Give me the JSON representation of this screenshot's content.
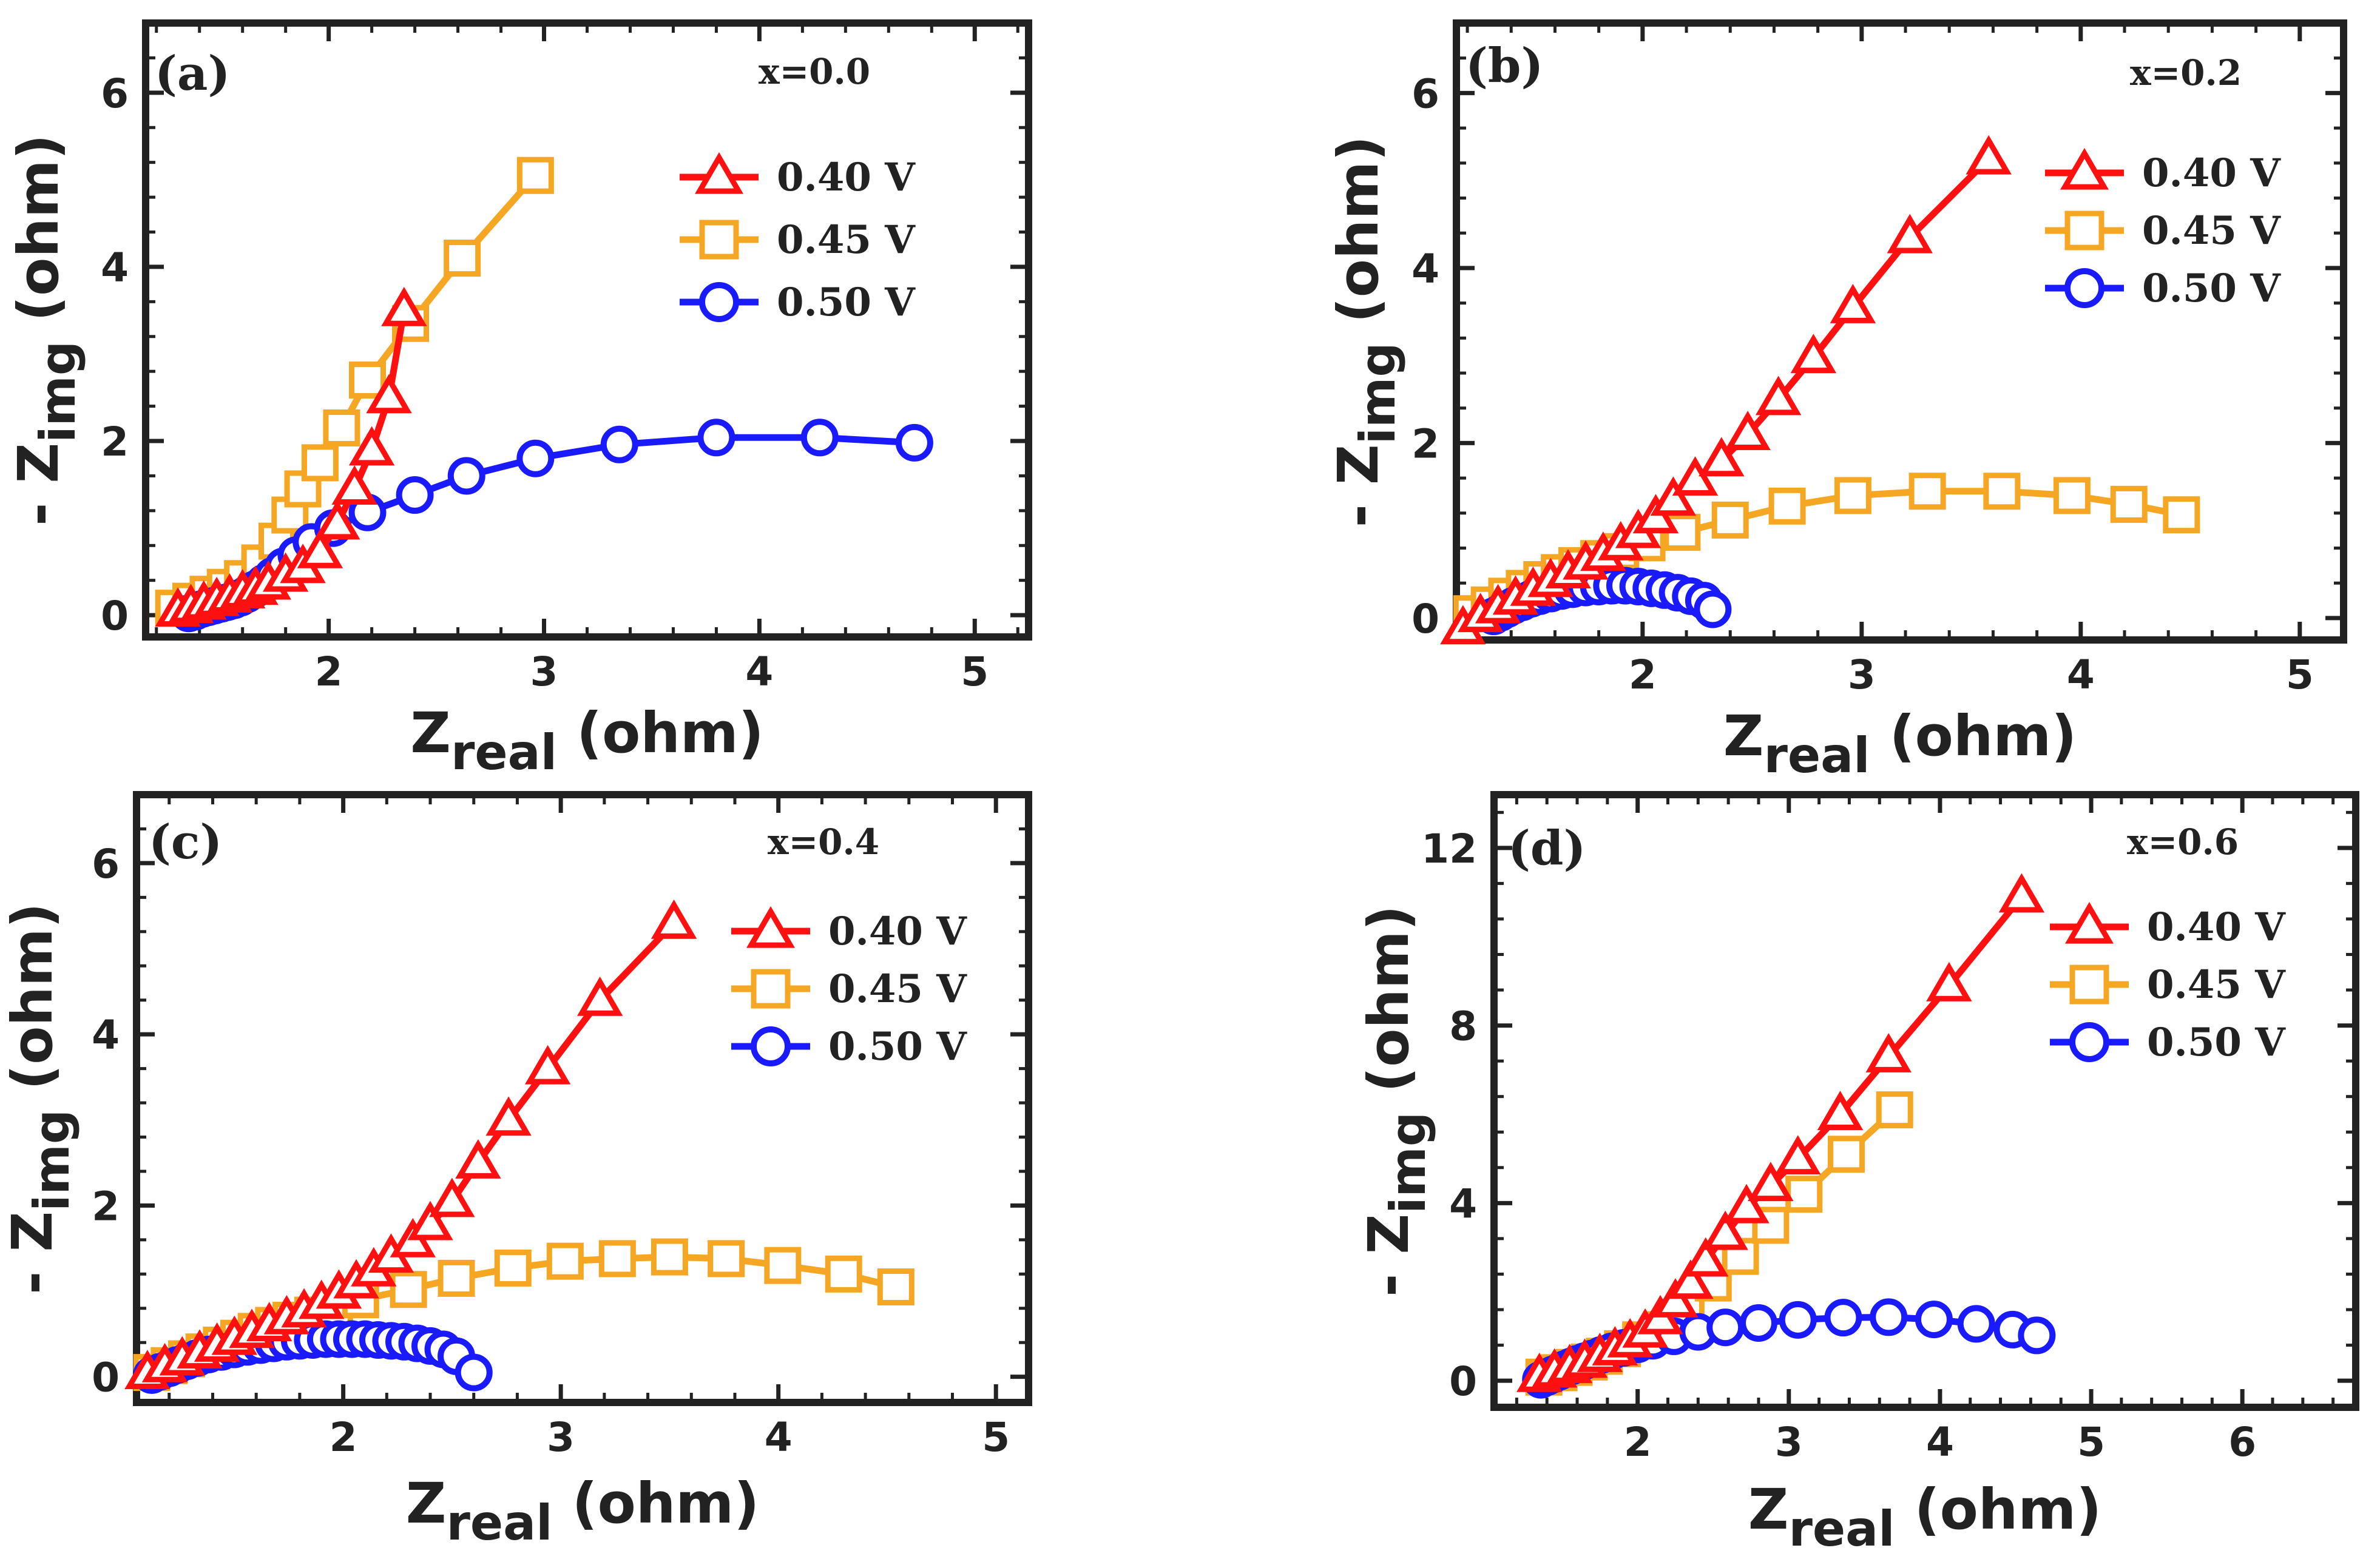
{
  "figure": {
    "axis_label_x_main": "Z",
    "axis_label_x_sub": "real",
    "axis_label_x_unit": "(ohm)",
    "axis_label_y_prefix": "- Z",
    "axis_label_y_sub": "img",
    "axis_label_y_unit": "(ohm)",
    "series_colors": {
      "0.40 V": "#ff1010",
      "0.45 V": "#f5a623",
      "0.50 V": "#1a1aff"
    },
    "series_markers": {
      "0.40 V": "triangle",
      "0.45 V": "square",
      "0.50 V": "circle"
    }
  },
  "chart_data": [
    {
      "type": "line",
      "panel": "(a)",
      "annotation": "x=0.0",
      "xlabel": "Zreal (ohm)",
      "ylabel": "- Zimg (ohm)",
      "xlim": [
        1.15,
        5.25
      ],
      "ylim": [
        -0.25,
        6.8
      ],
      "xticks": [
        2,
        3,
        4,
        5
      ],
      "yticks": [
        0,
        2,
        4,
        6
      ],
      "legend": "top-right",
      "series": [
        {
          "name": "0.40 V",
          "x": [
            1.3,
            1.36,
            1.42,
            1.48,
            1.54,
            1.6,
            1.66,
            1.72,
            1.8,
            1.88,
            1.96,
            2.04,
            2.12,
            2.2,
            2.28,
            2.35
          ],
          "y": [
            0.05,
            0.09,
            0.13,
            0.17,
            0.21,
            0.26,
            0.3,
            0.36,
            0.45,
            0.55,
            0.72,
            1.05,
            1.45,
            1.9,
            2.5,
            3.5
          ]
        },
        {
          "name": "0.45 V",
          "x": [
            1.28,
            1.36,
            1.44,
            1.52,
            1.6,
            1.68,
            1.76,
            1.82,
            1.88,
            1.96,
            2.06,
            2.18,
            2.38,
            2.62,
            2.96
          ],
          "y": [
            0.08,
            0.16,
            0.24,
            0.32,
            0.42,
            0.6,
            0.85,
            1.15,
            1.45,
            1.75,
            2.15,
            2.7,
            3.35,
            4.1,
            5.05
          ]
        },
        {
          "name": "0.50 V",
          "x": [
            1.35,
            1.38,
            1.41,
            1.44,
            1.47,
            1.5,
            1.53,
            1.56,
            1.59,
            1.62,
            1.66,
            1.7,
            1.74,
            1.79,
            1.85,
            1.92,
            2.02,
            2.18,
            2.4,
            2.64,
            2.96,
            3.35,
            3.8,
            4.28,
            4.72
          ],
          "y": [
            0.02,
            0.04,
            0.07,
            0.09,
            0.11,
            0.13,
            0.15,
            0.17,
            0.2,
            0.24,
            0.3,
            0.37,
            0.45,
            0.56,
            0.69,
            0.84,
            1.0,
            1.18,
            1.38,
            1.6,
            1.8,
            1.96,
            2.04,
            2.04,
            1.98
          ]
        }
      ]
    },
    {
      "type": "line",
      "panel": "(b)",
      "annotation": "x=0.2",
      "xlabel": "Zreal (ohm)",
      "ylabel": "- Zimg (ohm)",
      "xlim": [
        1.15,
        5.2
      ],
      "ylim": [
        -0.25,
        6.8
      ],
      "xticks": [
        2,
        3,
        4,
        5
      ],
      "yticks": [
        0,
        2,
        4,
        6
      ],
      "legend": "top-right",
      "series": [
        {
          "name": "0.40 V",
          "x": [
            1.18,
            1.26,
            1.34,
            1.42,
            1.5,
            1.58,
            1.66,
            1.74,
            1.82,
            1.9,
            1.98,
            2.06,
            2.14,
            2.24,
            2.36,
            2.48,
            2.62,
            2.78,
            2.96,
            3.22,
            3.58
          ],
          "y": [
            -0.12,
            0.02,
            0.12,
            0.22,
            0.32,
            0.42,
            0.52,
            0.62,
            0.72,
            0.84,
            0.98,
            1.15,
            1.35,
            1.58,
            1.8,
            2.1,
            2.5,
            2.98,
            3.55,
            4.35,
            5.25
          ]
        },
        {
          "name": "0.45 V",
          "x": [
            1.22,
            1.3,
            1.38,
            1.46,
            1.54,
            1.62,
            1.7,
            1.8,
            1.9,
            2.02,
            2.18,
            2.4,
            2.66,
            2.96,
            3.3,
            3.64,
            3.96,
            4.22,
            4.46
          ],
          "y": [
            0.05,
            0.15,
            0.25,
            0.34,
            0.44,
            0.52,
            0.6,
            0.68,
            0.76,
            0.86,
            0.98,
            1.12,
            1.28,
            1.4,
            1.45,
            1.45,
            1.4,
            1.3,
            1.18
          ]
        },
        {
          "name": "0.50 V",
          "x": [
            1.32,
            1.35,
            1.38,
            1.41,
            1.45,
            1.49,
            1.53,
            1.58,
            1.63,
            1.68,
            1.74,
            1.8,
            1.86,
            1.92,
            1.98,
            2.04,
            2.1,
            2.16,
            2.22,
            2.28,
            2.32
          ],
          "y": [
            0.02,
            0.06,
            0.1,
            0.14,
            0.18,
            0.22,
            0.25,
            0.28,
            0.31,
            0.33,
            0.35,
            0.36,
            0.37,
            0.37,
            0.36,
            0.34,
            0.32,
            0.29,
            0.25,
            0.2,
            0.1
          ]
        }
      ]
    },
    {
      "type": "line",
      "panel": "(c)",
      "annotation": "x=0.4",
      "xlabel": "Zreal (ohm)",
      "ylabel": "- Zimg (ohm)",
      "xlim": [
        1.05,
        5.15
      ],
      "ylim": [
        -0.3,
        6.8
      ],
      "xticks": [
        2,
        3,
        4,
        5
      ],
      "yticks": [
        0,
        2,
        4,
        6
      ],
      "legend": "top-right",
      "series": [
        {
          "name": "0.40 V",
          "x": [
            1.1,
            1.18,
            1.26,
            1.34,
            1.42,
            1.5,
            1.58,
            1.66,
            1.74,
            1.82,
            1.9,
            1.98,
            2.06,
            2.14,
            2.22,
            2.32,
            2.4,
            2.5,
            2.62,
            2.76,
            2.94,
            3.18,
            3.52
          ],
          "y": [
            0.04,
            0.12,
            0.2,
            0.28,
            0.36,
            0.44,
            0.52,
            0.6,
            0.68,
            0.76,
            0.86,
            0.98,
            1.1,
            1.24,
            1.4,
            1.58,
            1.78,
            2.05,
            2.5,
            3.0,
            3.6,
            4.4,
            5.3
          ]
        },
        {
          "name": "0.45 V",
          "x": [
            1.12,
            1.2,
            1.28,
            1.36,
            1.44,
            1.52,
            1.6,
            1.68,
            1.76,
            1.86,
            1.96,
            2.08,
            2.3,
            2.52,
            2.78,
            3.02,
            3.26,
            3.5,
            3.76,
            4.02,
            4.3,
            4.54
          ],
          "y": [
            0.05,
            0.13,
            0.21,
            0.29,
            0.37,
            0.45,
            0.53,
            0.6,
            0.66,
            0.72,
            0.8,
            0.9,
            1.02,
            1.15,
            1.27,
            1.35,
            1.38,
            1.4,
            1.38,
            1.3,
            1.2,
            1.05
          ]
        },
        {
          "name": "0.50 V",
          "x": [
            1.12,
            1.16,
            1.2,
            1.24,
            1.28,
            1.33,
            1.38,
            1.44,
            1.5,
            1.56,
            1.62,
            1.68,
            1.74,
            1.8,
            1.86,
            1.92,
            1.98,
            2.04,
            2.1,
            2.16,
            2.22,
            2.28,
            2.34,
            2.4,
            2.46,
            2.52,
            2.6
          ],
          "y": [
            0.02,
            0.06,
            0.1,
            0.14,
            0.18,
            0.22,
            0.26,
            0.29,
            0.32,
            0.35,
            0.37,
            0.39,
            0.41,
            0.42,
            0.43,
            0.44,
            0.44,
            0.44,
            0.44,
            0.43,
            0.42,
            0.41,
            0.39,
            0.36,
            0.32,
            0.24,
            0.05
          ]
        }
      ]
    },
    {
      "type": "line",
      "panel": "(d)",
      "annotation": "x=0.6",
      "xlabel": "Zreal (ohm)",
      "ylabel": "- Zimg (ohm)",
      "xlim": [
        1.05,
        6.75
      ],
      "ylim": [
        -0.6,
        13.2
      ],
      "xticks": [
        2,
        3,
        4,
        5,
        6
      ],
      "yticks": [
        0,
        4,
        8,
        12
      ],
      "legend": "top-right",
      "series": [
        {
          "name": "0.40 V",
          "x": [
            1.35,
            1.45,
            1.55,
            1.65,
            1.75,
            1.85,
            1.95,
            2.05,
            2.15,
            2.25,
            2.35,
            2.45,
            2.58,
            2.72,
            2.88,
            3.06,
            3.34,
            3.66,
            4.06,
            4.54
          ],
          "y": [
            0.1,
            0.2,
            0.3,
            0.42,
            0.55,
            0.7,
            0.88,
            1.1,
            1.4,
            1.78,
            2.2,
            2.7,
            3.3,
            3.9,
            4.4,
            5.0,
            6.0,
            7.3,
            8.9,
            10.9
          ]
        },
        {
          "name": "0.45 V",
          "x": [
            1.38,
            1.48,
            1.58,
            1.68,
            1.78,
            1.9,
            2.02,
            2.16,
            2.32,
            2.5,
            2.68,
            2.88,
            3.1,
            3.38,
            3.7
          ],
          "y": [
            0.08,
            0.18,
            0.3,
            0.42,
            0.55,
            0.72,
            0.92,
            1.15,
            1.55,
            2.2,
            2.8,
            3.5,
            4.2,
            5.1,
            6.1
          ]
        },
        {
          "name": "0.50 V",
          "x": [
            1.36,
            1.4,
            1.44,
            1.48,
            1.52,
            1.56,
            1.6,
            1.65,
            1.7,
            1.76,
            1.83,
            1.91,
            2.0,
            2.1,
            2.24,
            2.4,
            2.58,
            2.8,
            3.06,
            3.36,
            3.66,
            3.96,
            4.24,
            4.48,
            4.64
          ],
          "y": [
            0.02,
            0.08,
            0.14,
            0.2,
            0.26,
            0.32,
            0.38,
            0.44,
            0.5,
            0.58,
            0.66,
            0.74,
            0.82,
            0.9,
            1.0,
            1.1,
            1.2,
            1.3,
            1.37,
            1.42,
            1.43,
            1.38,
            1.28,
            1.15,
            1.02
          ]
        }
      ]
    }
  ]
}
